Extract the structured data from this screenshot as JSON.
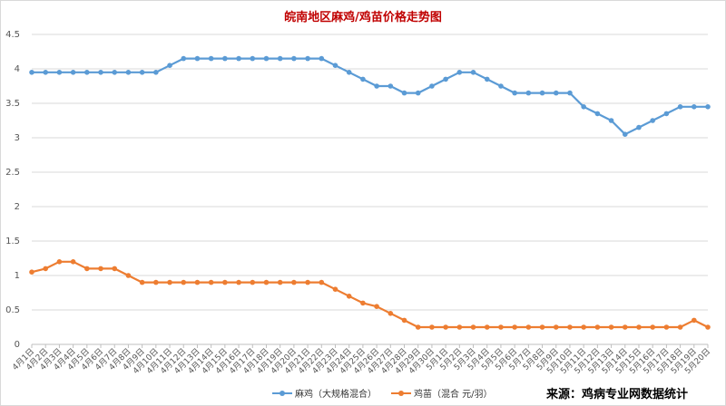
{
  "chart_data": {
    "type": "line",
    "title": "皖南地区麻鸡/鸡苗价格走势图",
    "xlabel": "",
    "ylabel": "",
    "ylim": [
      0,
      4.5
    ],
    "yticks": [
      "0",
      "0.5",
      "1",
      "1.5",
      "2",
      "2.5",
      "3",
      "3.5",
      "4",
      "4.5"
    ],
    "grid": true,
    "legend_position": "bottom",
    "categories": [
      "4月1日",
      "4月2日",
      "4月3日",
      "4月4日",
      "4月5日",
      "4月6日",
      "4月7日",
      "4月8日",
      "4月9日",
      "4月10日",
      "4月11日",
      "4月12日",
      "4月13日",
      "4月14日",
      "4月15日",
      "4月16日",
      "4月17日",
      "4月18日",
      "4月19日",
      "4月20日",
      "4月21日",
      "4月22日",
      "4月23日",
      "4月24日",
      "4月25日",
      "4月26日",
      "4月27日",
      "4月28日",
      "4月29日",
      "4月30日",
      "5月1日",
      "5月2日",
      "5月3日",
      "5月4日",
      "5月5日",
      "5月6日",
      "5月7日",
      "5月8日",
      "5月9日",
      "5月10日",
      "5月11日",
      "5月12日",
      "5月13日",
      "5月14日",
      "5月15日",
      "5月16日",
      "5月17日",
      "5月18日",
      "5月19日",
      "5月20日"
    ],
    "series": [
      {
        "name": "麻鸡（大规格混合）",
        "color": "#5b9bd5",
        "values": [
          3.95,
          3.95,
          3.95,
          3.95,
          3.95,
          3.95,
          3.95,
          3.95,
          3.95,
          3.95,
          4.05,
          4.15,
          4.15,
          4.15,
          4.15,
          4.15,
          4.15,
          4.15,
          4.15,
          4.15,
          4.15,
          4.15,
          4.05,
          3.95,
          3.85,
          3.75,
          3.75,
          3.65,
          3.65,
          3.75,
          3.85,
          3.95,
          3.95,
          3.85,
          3.75,
          3.65,
          3.65,
          3.65,
          3.65,
          3.65,
          3.45,
          3.35,
          3.25,
          3.05,
          3.15,
          3.25,
          3.35,
          3.45,
          3.45,
          3.45
        ]
      },
      {
        "name": "鸡苗（混合 元/羽）",
        "color": "#ed7d31",
        "values": [
          1.05,
          1.1,
          1.2,
          1.2,
          1.1,
          1.1,
          1.1,
          1.0,
          0.9,
          0.9,
          0.9,
          0.9,
          0.9,
          0.9,
          0.9,
          0.9,
          0.9,
          0.9,
          0.9,
          0.9,
          0.9,
          0.9,
          0.8,
          0.7,
          0.6,
          0.55,
          0.45,
          0.35,
          0.25,
          0.25,
          0.25,
          0.25,
          0.25,
          0.25,
          0.25,
          0.25,
          0.25,
          0.25,
          0.25,
          0.25,
          0.25,
          0.25,
          0.25,
          0.25,
          0.25,
          0.25,
          0.25,
          0.25,
          0.35,
          0.25
        ]
      }
    ]
  },
  "source": "来源：鸡病专业网数据统计"
}
